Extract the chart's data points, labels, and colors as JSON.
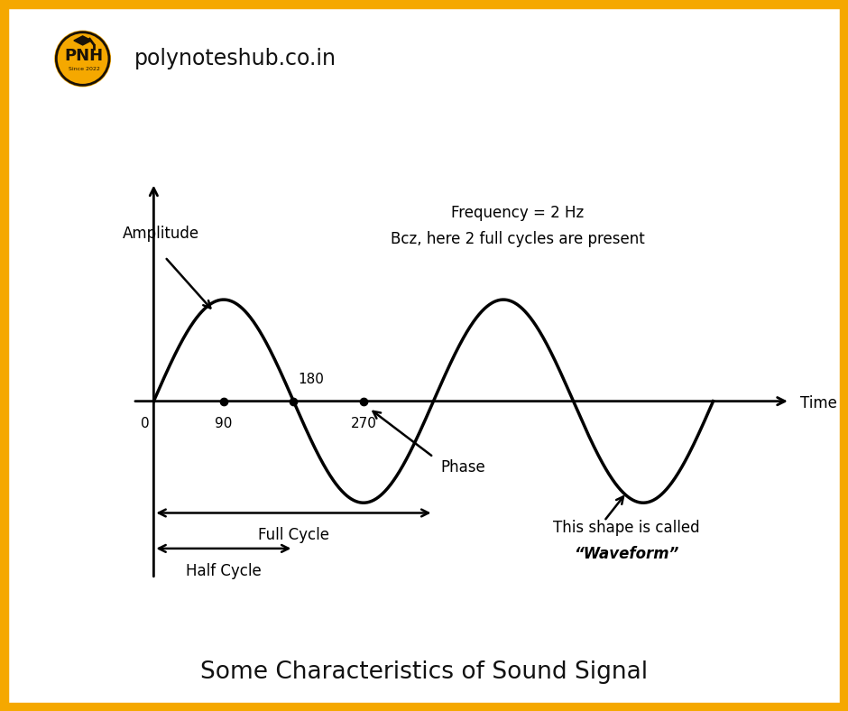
{
  "background_color": "#ffffff",
  "border_color": "#F5A800",
  "border_width": 14,
  "title": "Some Characteristics of Sound Signal",
  "title_fontsize": 19,
  "header_text": "polynoteshub.co.in",
  "header_fontsize": 17,
  "freq_line1": "Frequency = 2 Hz",
  "freq_line2": "Bcz, here 2 full cycles are present",
  "freq_fontsize": 12,
  "amplitude_label": "Amplitude",
  "time_label": "Time",
  "phase_label": "Phase",
  "waveform_line1": "This shape is called",
  "waveform_line2": "“Waveform”",
  "full_cycle_label": "Full Cycle",
  "half_cycle_label": "Half Cycle",
  "origin_label": "0",
  "label_90": "90",
  "label_180": "180",
  "label_270": "270",
  "wave_color": "#000000",
  "axis_color": "#000000",
  "text_color": "#000000",
  "xlim": [
    -0.25,
    4.6
  ],
  "ylim": [
    -2.0,
    2.2
  ],
  "logo_yellow": "#F5A800",
  "logo_dark": "#1a1208"
}
